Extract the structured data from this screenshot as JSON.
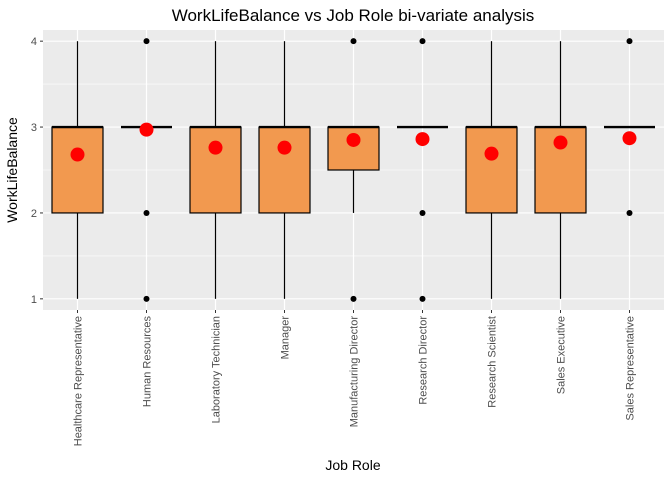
{
  "chart_data": {
    "type": "boxplot",
    "title": "WorkLifeBalance vs Job Role bi-variate analysis",
    "xlabel": "Job Role",
    "ylabel": "WorkLifeBalance",
    "ylim": [
      0.87,
      4.13
    ],
    "yticks": [
      1,
      2,
      3,
      4
    ],
    "grid": true,
    "categories": [
      "Healthcare Representative",
      "Human Resources",
      "Laboratory Technician",
      "Manager",
      "Manufacturing Director",
      "Research Director",
      "Research Scientist",
      "Sales Executive",
      "Sales Representative"
    ],
    "boxes": [
      {
        "min": 1,
        "q1": 2,
        "median": 3,
        "q3": 3,
        "max": 4,
        "outliers": [],
        "mean": 2.68
      },
      {
        "min": 3,
        "q1": 3,
        "median": 3,
        "q3": 3,
        "max": 3,
        "outliers": [
          1,
          2,
          4
        ],
        "mean": 2.97
      },
      {
        "min": 1,
        "q1": 2,
        "median": 3,
        "q3": 3,
        "max": 4,
        "outliers": [],
        "mean": 2.76
      },
      {
        "min": 1,
        "q1": 2,
        "median": 3,
        "q3": 3,
        "max": 4,
        "outliers": [],
        "mean": 2.76
      },
      {
        "min": 2,
        "q1": 2.5,
        "median": 3,
        "q3": 3,
        "max": 3,
        "outliers": [
          1,
          4
        ],
        "mean": 2.85
      },
      {
        "min": 3,
        "q1": 3,
        "median": 3,
        "q3": 3,
        "max": 3,
        "outliers": [
          1,
          2,
          4
        ],
        "mean": 2.86
      },
      {
        "min": 1,
        "q1": 2,
        "median": 3,
        "q3": 3,
        "max": 4,
        "outliers": [],
        "mean": 2.69
      },
      {
        "min": 1,
        "q1": 2,
        "median": 3,
        "q3": 3,
        "max": 4,
        "outliers": [],
        "mean": 2.82
      },
      {
        "min": 3,
        "q1": 3,
        "median": 3,
        "q3": 3,
        "max": 3,
        "outliers": [
          2,
          4
        ],
        "mean": 2.87
      }
    ],
    "colors": {
      "panel_background": "#ebebeb",
      "grid": "#ffffff",
      "box_fill": "#f2994f",
      "box_stroke": "#000000",
      "mean_point": "#ff0000",
      "outlier": "#000000"
    }
  }
}
